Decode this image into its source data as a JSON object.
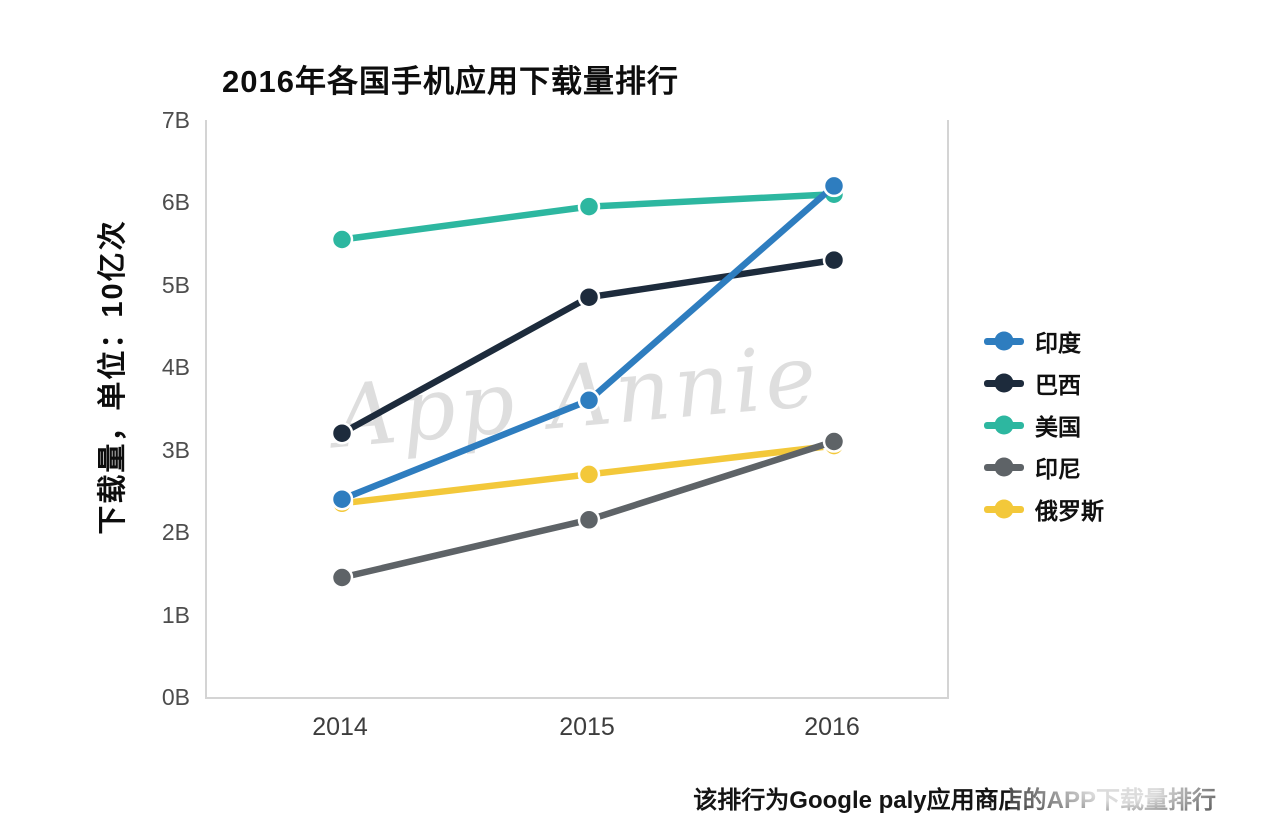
{
  "chart_data": {
    "type": "line",
    "title": "2016年各国手机应用下载量排行",
    "ylabel": "下载量，单位：10亿次",
    "x": [
      "2014",
      "2015",
      "2016"
    ],
    "ylim": [
      0,
      7
    ],
    "ytick_labels": [
      "0B",
      "1B",
      "2B",
      "3B",
      "4B",
      "5B",
      "6B",
      "7B"
    ],
    "grid": false,
    "legend_position": "right",
    "series": [
      {
        "name": "印度",
        "color": "#2e7dbf",
        "values": [
          2.4,
          3.6,
          6.2
        ]
      },
      {
        "name": "巴西",
        "color": "#1d2b3c",
        "values": [
          3.2,
          4.85,
          5.3
        ]
      },
      {
        "name": "美国",
        "color": "#2db7a0",
        "values": [
          5.55,
          5.95,
          6.1
        ]
      },
      {
        "name": "印尼",
        "color": "#5e6367",
        "values": [
          1.45,
          2.15,
          3.1
        ]
      },
      {
        "name": "俄罗斯",
        "color": "#f3c83a",
        "values": [
          2.35,
          2.7,
          3.05
        ]
      }
    ],
    "watermark": "App Annie"
  },
  "footnote": "该排行为Google paly应用商店的APP下载量排行"
}
